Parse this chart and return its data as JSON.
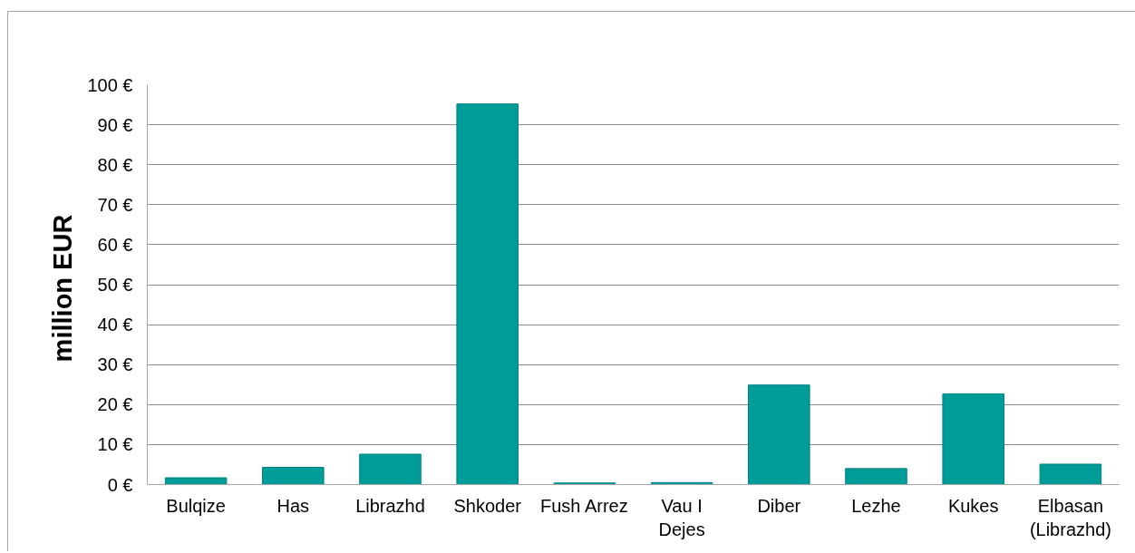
{
  "chart_data": {
    "type": "bar",
    "ylabel": "million  EUR",
    "categories": [
      "Bulqize",
      "Has",
      "Librazhd",
      "Shkoder",
      "Fush Arrez",
      "Vau I Dejes",
      "Diber",
      "Lezhe",
      "Kukes",
      "Elbasan (Librazhd)"
    ],
    "values": [
      1.7,
      4.3,
      7.6,
      95.2,
      0.4,
      0.5,
      24.9,
      4.0,
      22.7,
      5.1
    ],
    "color": "#009c97",
    "ylim": [
      0,
      100
    ],
    "yticks": [
      {
        "value": 0,
        "label": "0 €"
      },
      {
        "value": 10,
        "label": "10 €"
      },
      {
        "value": 20,
        "label": "20 €"
      },
      {
        "value": 30,
        "label": "30 €"
      },
      {
        "value": 40,
        "label": "40 €"
      },
      {
        "value": 50,
        "label": "50 €"
      },
      {
        "value": 60,
        "label": "60 €"
      },
      {
        "value": 70,
        "label": "70 €"
      },
      {
        "value": 80,
        "label": "80 €"
      },
      {
        "value": 90,
        "label": "90 €"
      },
      {
        "value": 100,
        "label": "100 €"
      }
    ],
    "grid": "y"
  }
}
